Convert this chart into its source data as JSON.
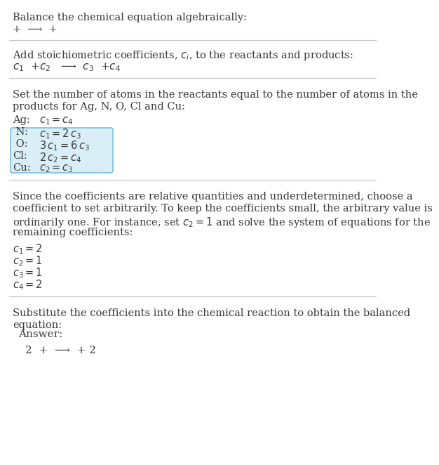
{
  "title": "Balance the chemical equation algebraically:",
  "intro_eq": "+  ⟶  +",
  "sec1_header": "Add stoichiometric coefficients, $c_i$, to the reactants and products:",
  "sec1_eq": "$c_1$  +$c_2$   ⟶  $c_3$  +$c_4$",
  "sec2_header_1": "Set the number of atoms in the reactants equal to the number of atoms in the",
  "sec2_header_2": "products for Ag, N, O, Cl and Cu:",
  "sec2_labels": [
    "Ag:",
    " N:",
    " O:",
    "Cl:",
    "Cu:"
  ],
  "sec2_eqs": [
    "$c_1 = c_4$",
    "$c_1 = 2\\,c_3$",
    "$3\\,c_1 = 6\\,c_3$",
    "$2\\,c_2 = c_4$",
    "$c_2 = c_3$"
  ],
  "sec3_lines": [
    "Since the coefficients are relative quantities and underdetermined, choose a",
    "coefficient to set arbitrarily. To keep the coefficients small, the arbitrary value is",
    "ordinarily one. For instance, set $c_2 = 1$ and solve the system of equations for the",
    "remaining coefficients:"
  ],
  "sec3_coeffs": [
    "$c_1 = 2$",
    "$c_2 = 1$",
    "$c_3 = 1$",
    "$c_4 = 2$"
  ],
  "sec4_header_1": "Substitute the coefficients into the chemical reaction to obtain the balanced",
  "sec4_header_2": "equation:",
  "answer_label": "Answer:",
  "answer_eq": "2  +  ⟶  + 2",
  "bg_color": "#ffffff",
  "text_color": "#3a3a3a",
  "line_color": "#c0c0c0",
  "answer_bg": "#daeef8",
  "answer_border": "#7abfdb",
  "font_size": 10.5
}
